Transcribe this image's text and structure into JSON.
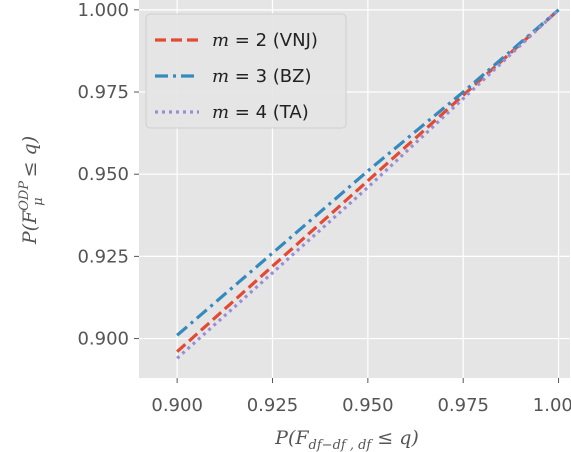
{
  "chart_data": {
    "type": "line",
    "title": "",
    "xlabel": "P(F_{df-df_, df_} ≤ q)",
    "ylabel": "P(F_μ^{ODP} ≤ q)",
    "xlim": [
      0.89,
      1.003
    ],
    "ylim": [
      0.888,
      1.003
    ],
    "x_ticks": [
      "0.900",
      "0.925",
      "0.950",
      "0.975",
      "1.000"
    ],
    "y_ticks": [
      "0.900",
      "0.925",
      "0.950",
      "0.975",
      "1.000"
    ],
    "grid": true,
    "legend_position": "top-left",
    "series": [
      {
        "name": "m = 2 (VNJ)",
        "legend_prefix": "m",
        "legend_suffix": " = 2 (VNJ)",
        "color": "#E24A33",
        "dash": "dashed",
        "x": [
          0.9,
          0.925,
          0.95,
          0.975,
          1.0
        ],
        "y": [
          0.896,
          0.922,
          0.948,
          0.974,
          1.0
        ]
      },
      {
        "name": "m = 3 (BZ)",
        "legend_prefix": "m",
        "legend_suffix": " = 3 (BZ)",
        "color": "#348ABD",
        "dash": "dashdot",
        "x": [
          0.9,
          0.925,
          0.95,
          0.975,
          1.0
        ],
        "y": [
          0.901,
          0.926,
          0.951,
          0.975,
          1.0
        ]
      },
      {
        "name": "m = 4 (TA)",
        "legend_prefix": "m",
        "legend_suffix": " = 4 (TA)",
        "color": "#988ED5",
        "dash": "dotted",
        "x": [
          0.9,
          0.925,
          0.95,
          0.975,
          1.0
        ],
        "y": [
          0.894,
          0.92,
          0.946,
          0.973,
          1.0
        ]
      }
    ]
  }
}
